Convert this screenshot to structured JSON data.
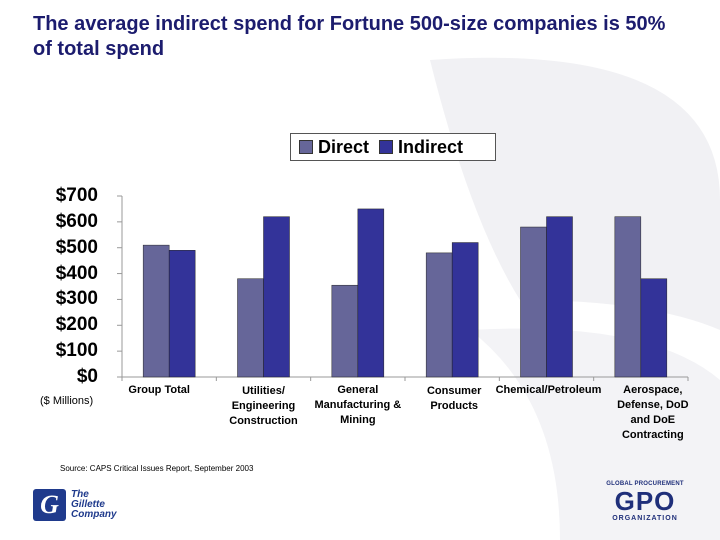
{
  "title": "The average indirect spend for Fortune 500-size companies is 50% of total spend",
  "colors": {
    "direct": "#666699",
    "indirect": "#333399",
    "title": "#1c1c6e"
  },
  "chart_data": {
    "type": "bar",
    "title": "",
    "ylabel": "($ Millions)",
    "ylim": [
      0,
      700
    ],
    "yticks": [
      "$700",
      "$600",
      "$500",
      "$400",
      "$300",
      "$200",
      "$100",
      "$0"
    ],
    "legend_position": "top",
    "grid": false,
    "categories": [
      "Group Total",
      "Utilities/\nEngineering\nConstruction",
      "General\nManufacturing &\nMining",
      "Consumer\nProducts",
      "Chemical/Petroleum",
      "Aerospace,\nDefense, DoD\nand DoE\nContracting"
    ],
    "series": [
      {
        "name": "Direct",
        "values": [
          510,
          380,
          355,
          480,
          580,
          620
        ]
      },
      {
        "name": "Indirect",
        "values": [
          490,
          620,
          650,
          520,
          620,
          380
        ]
      }
    ]
  },
  "source": "Source: CAPS Critical Issues Report, September 2003",
  "gillette": {
    "mark": "G",
    "text": "The\nGillette\nCompany"
  },
  "gpo": {
    "top": "GLOBAL PROCUREMENT",
    "main": "GPO",
    "bottom": "ORGANIZATION"
  }
}
